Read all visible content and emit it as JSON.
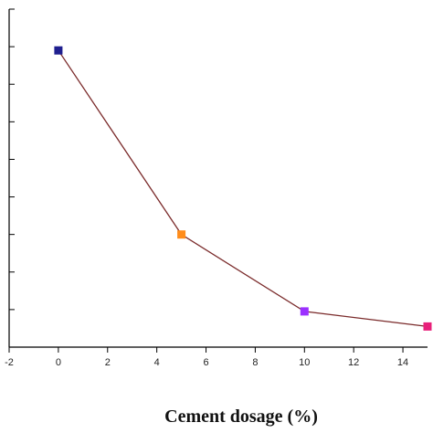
{
  "chart_data": {
    "type": "line",
    "xlabel": "Cement dosage (%)",
    "ylabel": "",
    "xlim": [
      -2,
      15
    ],
    "ylim": [
      0,
      9
    ],
    "x_ticks": [
      -2,
      0,
      2,
      4,
      6,
      8,
      10,
      12,
      14
    ],
    "x_tick_labels": [
      "-2",
      "0",
      "2",
      "4",
      "6",
      "8",
      "10",
      "12",
      "14"
    ],
    "y_ticks": [
      0,
      1,
      2,
      3,
      4,
      5,
      6,
      7,
      8,
      9
    ],
    "grid": false,
    "series": [
      {
        "x": [
          0,
          5,
          10,
          15
        ],
        "y": [
          7.9,
          3.0,
          0.95,
          0.55
        ],
        "line_color": "#7a2a2a",
        "marker_colors": [
          "#1f1f8f",
          "#ff8c1a",
          "#9b30ff",
          "#e8207a"
        ]
      }
    ]
  }
}
